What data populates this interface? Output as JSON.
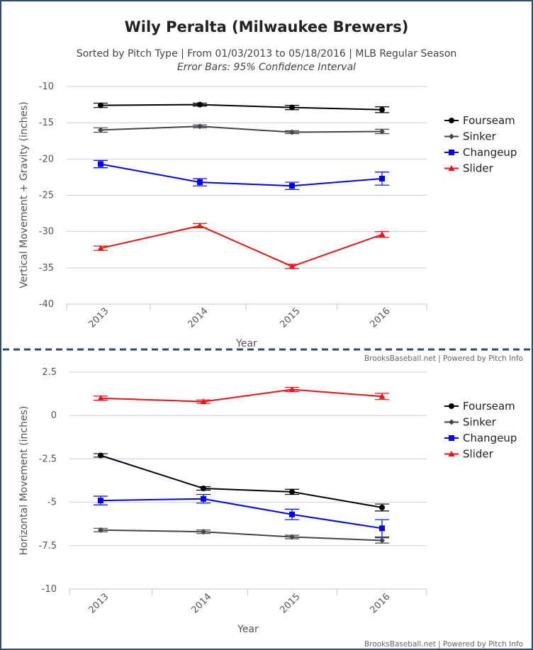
{
  "title": "Wily Peralta (Milwaukee Brewers)",
  "subtitle": "Sorted by Pitch Type | From 01/03/2013 to 05/18/2016 | MLB Regular Season",
  "subtitle2": "Error Bars: 95% Confidence Interval",
  "credit": "BrooksBaseball.net | Powered by Pitch Info",
  "colors": {
    "Fourseam": "#000000",
    "Sinker": "#444444",
    "Changeup": "#0000ff",
    "Slider": "#ee1111"
  },
  "chart_data": [
    {
      "type": "line",
      "categories": [
        "2013",
        "2014",
        "2015",
        "2016"
      ],
      "xlabel": "Year",
      "ylabel": "Vertical Movement + Gravity (inches)",
      "ylim": [
        -40,
        -10
      ],
      "yticks": [
        -10,
        -15,
        -20,
        -25,
        -30,
        -35,
        -40
      ],
      "yticklabels": [
        "-10",
        "-15",
        "-20",
        "-25",
        "-30",
        "-35",
        "-40"
      ],
      "legend": "right",
      "grid": true,
      "series": [
        {
          "name": "Fourseam",
          "marker": "circle",
          "values": [
            -12.6,
            -12.5,
            -12.9,
            -13.2
          ],
          "err": [
            0.3,
            0.2,
            0.3,
            0.4
          ]
        },
        {
          "name": "Sinker",
          "marker": "diamond",
          "values": [
            -16.0,
            -15.5,
            -16.3,
            -16.2
          ],
          "err": [
            0.3,
            0.2,
            0.2,
            0.3
          ]
        },
        {
          "name": "Changeup",
          "marker": "square",
          "values": [
            -20.7,
            -23.2,
            -23.7,
            -22.7
          ],
          "err": [
            0.5,
            0.5,
            0.5,
            0.9
          ]
        },
        {
          "name": "Slider",
          "marker": "triangle",
          "values": [
            -32.3,
            -29.2,
            -34.8,
            -30.4
          ],
          "err": [
            0.3,
            0.3,
            0.3,
            0.4
          ]
        }
      ]
    },
    {
      "type": "line",
      "categories": [
        "2013",
        "2014",
        "2015",
        "2016"
      ],
      "xlabel": "Year",
      "ylabel": "Horizontal Movement (inches)",
      "ylim": [
        -10,
        2.5
      ],
      "yticks": [
        2.5,
        0,
        -2.5,
        -5,
        -7.5,
        -10
      ],
      "yticklabels": [
        "2.5",
        "0",
        "-2.5",
        "-5",
        "-7.5",
        "-10"
      ],
      "legend": "right",
      "grid": true,
      "series": [
        {
          "name": "Fourseam",
          "marker": "circle",
          "values": [
            -2.3,
            -4.2,
            -4.4,
            -5.3
          ],
          "err": [
            0.1,
            0.1,
            0.15,
            0.2
          ]
        },
        {
          "name": "Sinker",
          "marker": "diamond",
          "values": [
            -6.6,
            -6.7,
            -7.0,
            -7.2
          ],
          "err": [
            0.1,
            0.1,
            0.1,
            0.15
          ]
        },
        {
          "name": "Changeup",
          "marker": "square",
          "values": [
            -4.9,
            -4.8,
            -5.7,
            -6.5
          ],
          "err": [
            0.25,
            0.25,
            0.3,
            0.5
          ]
        },
        {
          "name": "Slider",
          "marker": "triangle",
          "values": [
            1.0,
            0.8,
            1.5,
            1.1
          ],
          "err": [
            0.12,
            0.1,
            0.12,
            0.18
          ]
        }
      ]
    }
  ]
}
